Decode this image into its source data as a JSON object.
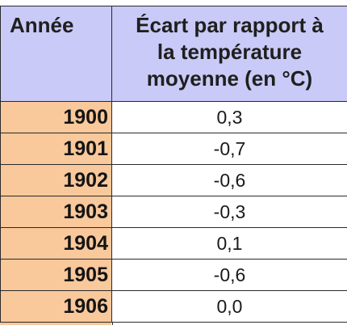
{
  "table": {
    "headers": {
      "year": "Année",
      "deviation_lines": [
        "Écart par rapport à",
        "la température",
        "moyenne (en °C)"
      ]
    },
    "rows": [
      {
        "year": "1900",
        "deviation": "0,3"
      },
      {
        "year": "1901",
        "deviation": "-0,7"
      },
      {
        "year": "1902",
        "deviation": "-0,6"
      },
      {
        "year": "1903",
        "deviation": "-0,3"
      },
      {
        "year": "1904",
        "deviation": "0,1"
      },
      {
        "year": "1905",
        "deviation": "-0,6"
      },
      {
        "year": "1906",
        "deviation": "0,0"
      }
    ]
  },
  "colors": {
    "header_bg": "#c9caf7",
    "year_bg": "#f9c89b",
    "border": "#2a2a2a"
  }
}
